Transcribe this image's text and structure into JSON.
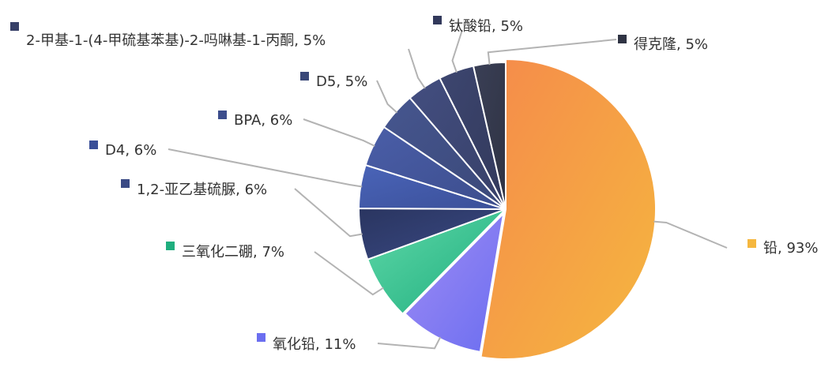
{
  "chart_data": {
    "type": "pie",
    "title": "",
    "slices": [
      {
        "label": "铅, 93%",
        "value": 93,
        "color": "#f58a4b",
        "color2": "#f5b73f"
      },
      {
        "label": "氧化铅, 11%",
        "value": 11,
        "color": "#a08cf5",
        "color2": "#6b6ef0"
      },
      {
        "label": "三氧化二硼, 7%",
        "value": 7,
        "color": "#5fd8a8",
        "color2": "#1fae7e"
      },
      {
        "label": "1,2-亚乙基硫脲, 6%",
        "value": 6,
        "color": "#2a3560",
        "color2": "#3a4a85"
      },
      {
        "label": "D4, 6%",
        "value": 6,
        "color": "#4a64b8",
        "color2": "#3a4f98"
      },
      {
        "label": "BPA, 6%",
        "value": 6,
        "color": "#4a5ea8",
        "color2": "#3c4d8c"
      },
      {
        "label": "D5, 5%",
        "value": 5,
        "color": "#46568f",
        "color2": "#3a4878"
      },
      {
        "label": "2-甲基-1-(4-甲硫基苯基)-2-吗啉基-1-丙酮, 5%",
        "value": 5,
        "color": "#434e80",
        "color2": "#374068"
      },
      {
        "label": "钛酸铅, 5%",
        "value": 5,
        "color": "#3d4670",
        "color2": "#32395b"
      },
      {
        "label": "得克隆, 5%",
        "value": 5,
        "color": "#3a3f56",
        "color2": "#2f3343"
      }
    ]
  }
}
